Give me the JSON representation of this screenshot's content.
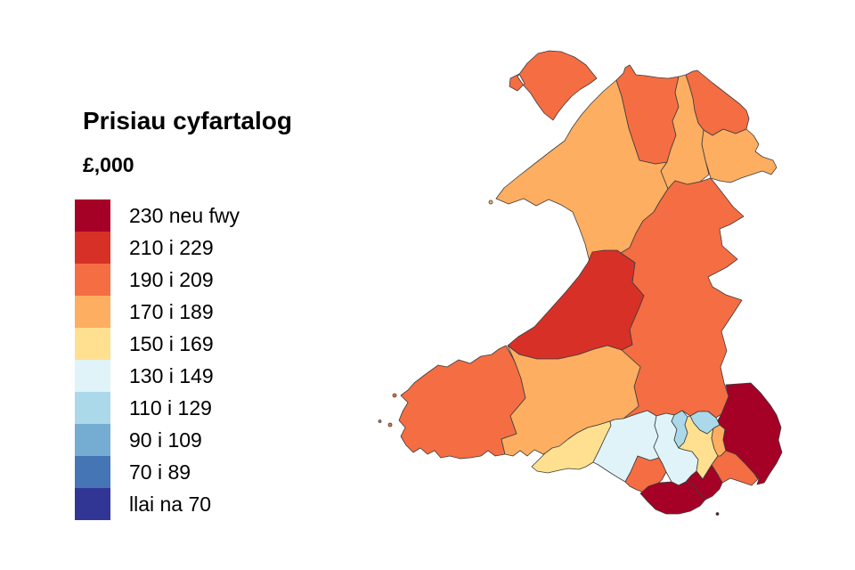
{
  "title": "Prisiau cyfartalog",
  "unit": "£,000",
  "legend": [
    {
      "label": "230 neu fwy",
      "color": "#a50026"
    },
    {
      "label": "210 i 229",
      "color": "#d73027"
    },
    {
      "label": "190 i 209",
      "color": "#f46d43"
    },
    {
      "label": "170 i 189",
      "color": "#fdae61"
    },
    {
      "label": "150 i 169",
      "color": "#fee090"
    },
    {
      "label": "130 i 149",
      "color": "#e0f3f8"
    },
    {
      "label": "110 i 129",
      "color": "#abd9e9"
    },
    {
      "label": "90 i 109",
      "color": "#74add1"
    },
    {
      "label": "70 i 89",
      "color": "#4575b4"
    },
    {
      "label": "llai na 70",
      "color": "#313695"
    }
  ],
  "chart_data": {
    "type": "choropleth",
    "title": "Prisiau cyfartalog",
    "legend_title": "£,000",
    "legend_position": "left",
    "regions": [
      {
        "id": "isle-of-anglesey",
        "name": "Isle of Anglesey",
        "band": "190 i 209",
        "value_range_k": [
          190,
          209
        ],
        "color": "#f46d43"
      },
      {
        "id": "gwynedd",
        "name": "Gwynedd",
        "band": "170 i 189",
        "value_range_k": [
          170,
          189
        ],
        "color": "#fdae61"
      },
      {
        "id": "conwy",
        "name": "Conwy",
        "band": "190 i 209",
        "value_range_k": [
          190,
          209
        ],
        "color": "#f46d43"
      },
      {
        "id": "denbighshire",
        "name": "Denbighshire",
        "band": "170 i 189",
        "value_range_k": [
          170,
          189
        ],
        "color": "#fdae61"
      },
      {
        "id": "flintshire",
        "name": "Flintshire",
        "band": "190 i 209",
        "value_range_k": [
          190,
          209
        ],
        "color": "#f46d43"
      },
      {
        "id": "wrexham",
        "name": "Wrexham",
        "band": "170 i 189",
        "value_range_k": [
          170,
          189
        ],
        "color": "#fdae61"
      },
      {
        "id": "powys",
        "name": "Powys",
        "band": "190 i 209",
        "value_range_k": [
          190,
          209
        ],
        "color": "#f46d43"
      },
      {
        "id": "ceredigion",
        "name": "Ceredigion",
        "band": "210 i 229",
        "value_range_k": [
          210,
          229
        ],
        "color": "#d73027"
      },
      {
        "id": "pembrokeshire",
        "name": "Pembrokeshire",
        "band": "190 i 209",
        "value_range_k": [
          190,
          209
        ],
        "color": "#f46d43"
      },
      {
        "id": "carmarthenshire",
        "name": "Carmarthenshire",
        "band": "170 i 189",
        "value_range_k": [
          170,
          189
        ],
        "color": "#fdae61"
      },
      {
        "id": "swansea",
        "name": "Swansea",
        "band": "150 i 169",
        "value_range_k": [
          150,
          169
        ],
        "color": "#fee090"
      },
      {
        "id": "neath-port-talbot",
        "name": "Neath Port Talbot",
        "band": "130 i 149",
        "value_range_k": [
          130,
          149
        ],
        "color": "#e0f3f8"
      },
      {
        "id": "bridgend",
        "name": "Bridgend",
        "band": "190 i 209",
        "value_range_k": [
          190,
          209
        ],
        "color": "#f46d43"
      },
      {
        "id": "rhondda-cynon-taf",
        "name": "Rhondda Cynon Taf",
        "band": "130 i 149",
        "value_range_k": [
          130,
          149
        ],
        "color": "#e0f3f8"
      },
      {
        "id": "merthyr-tydfil",
        "name": "Merthyr Tydfil",
        "band": "110 i 129",
        "value_range_k": [
          110,
          129
        ],
        "color": "#abd9e9"
      },
      {
        "id": "caerphilly",
        "name": "Caerphilly",
        "band": "150 i 169",
        "value_range_k": [
          150,
          169
        ],
        "color": "#fee090"
      },
      {
        "id": "blaenau-gwent",
        "name": "Blaenau Gwent",
        "band": "110 i 129",
        "value_range_k": [
          110,
          129
        ],
        "color": "#abd9e9"
      },
      {
        "id": "torfaen",
        "name": "Torfaen",
        "band": "170 i 189",
        "value_range_k": [
          170,
          189
        ],
        "color": "#fdae61"
      },
      {
        "id": "monmouthshire",
        "name": "Monmouthshire",
        "band": "230 neu fwy",
        "value_range_k": [
          230,
          null
        ],
        "color": "#a50026"
      },
      {
        "id": "newport",
        "name": "Newport",
        "band": "190 i 209",
        "value_range_k": [
          190,
          209
        ],
        "color": "#f46d43"
      },
      {
        "id": "cardiff",
        "name": "Cardiff",
        "band": "230 neu fwy",
        "value_range_k": [
          230,
          null
        ],
        "color": "#a50026"
      },
      {
        "id": "vale-of-glamorgan",
        "name": "Vale of Glamorgan",
        "band": "230 neu fwy",
        "value_range_k": [
          230,
          null
        ],
        "color": "#a50026"
      }
    ]
  }
}
